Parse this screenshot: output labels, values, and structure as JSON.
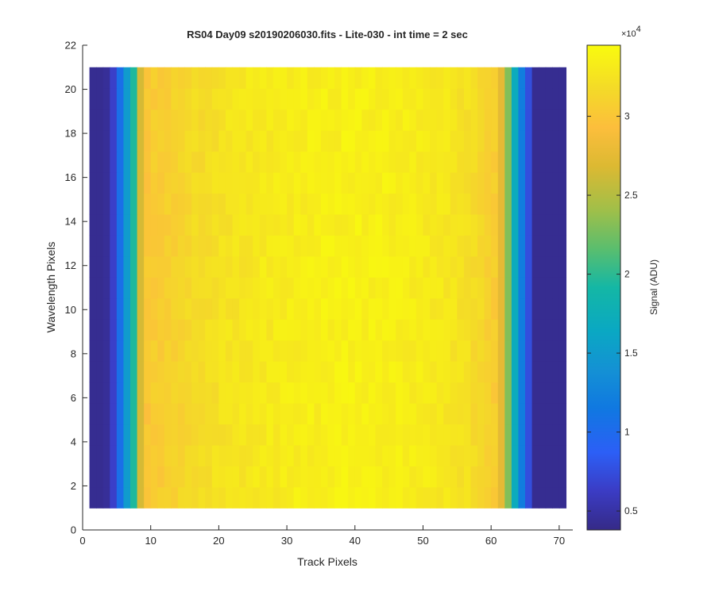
{
  "chart_data": {
    "type": "heatmap",
    "title": "RS04 Day09  s20190206030.fits - Lite-030 - int time = 2 sec",
    "xlabel": "Track Pixels",
    "ylabel": "Wavelength Pixels",
    "xlim": [
      0,
      72
    ],
    "ylim": [
      0,
      22
    ],
    "xticks": [
      0,
      10,
      20,
      30,
      40,
      50,
      60,
      70
    ],
    "yticks": [
      0,
      2,
      4,
      6,
      8,
      10,
      12,
      14,
      16,
      18,
      20,
      22
    ],
    "x_range": [
      1,
      71
    ],
    "y_range": [
      1,
      21
    ],
    "n_rows": 21,
    "grid": false,
    "colormap": "parula",
    "colorbar": {
      "label": "Signal (ADU)",
      "exponent": "×10",
      "exponent_power": "4",
      "clim": [
        0.38,
        3.45
      ],
      "ticks": [
        0.5,
        1,
        1.5,
        2,
        2.5,
        3
      ],
      "tick_labels": [
        "0.5",
        "1",
        "1.5",
        "2",
        "2.5",
        "3"
      ],
      "unit_multiplier": 10000
    },
    "column_profile_x10e4": [
      0.42,
      0.42,
      0.45,
      0.65,
      1.05,
      1.5,
      1.95,
      2.65,
      3.0,
      3.05,
      3.05,
      3.07,
      3.1,
      3.12,
      3.15,
      3.17,
      3.18,
      3.2,
      3.22,
      3.24,
      3.25,
      3.26,
      3.27,
      3.28,
      3.29,
      3.3,
      3.3,
      3.31,
      3.32,
      3.32,
      3.33,
      3.33,
      3.34,
      3.34,
      3.35,
      3.35,
      3.35,
      3.36,
      3.36,
      3.36,
      3.36,
      3.35,
      3.35,
      3.35,
      3.34,
      3.34,
      3.33,
      3.33,
      3.32,
      3.31,
      3.3,
      3.29,
      3.28,
      3.26,
      3.24,
      3.22,
      3.18,
      3.15,
      3.1,
      3.05,
      2.75,
      2.3,
      1.7,
      1.2,
      0.75,
      0.42,
      0.42,
      0.42,
      0.42,
      0.42
    ]
  },
  "colors": {
    "background": "#ffffff",
    "axis": "#262626"
  }
}
